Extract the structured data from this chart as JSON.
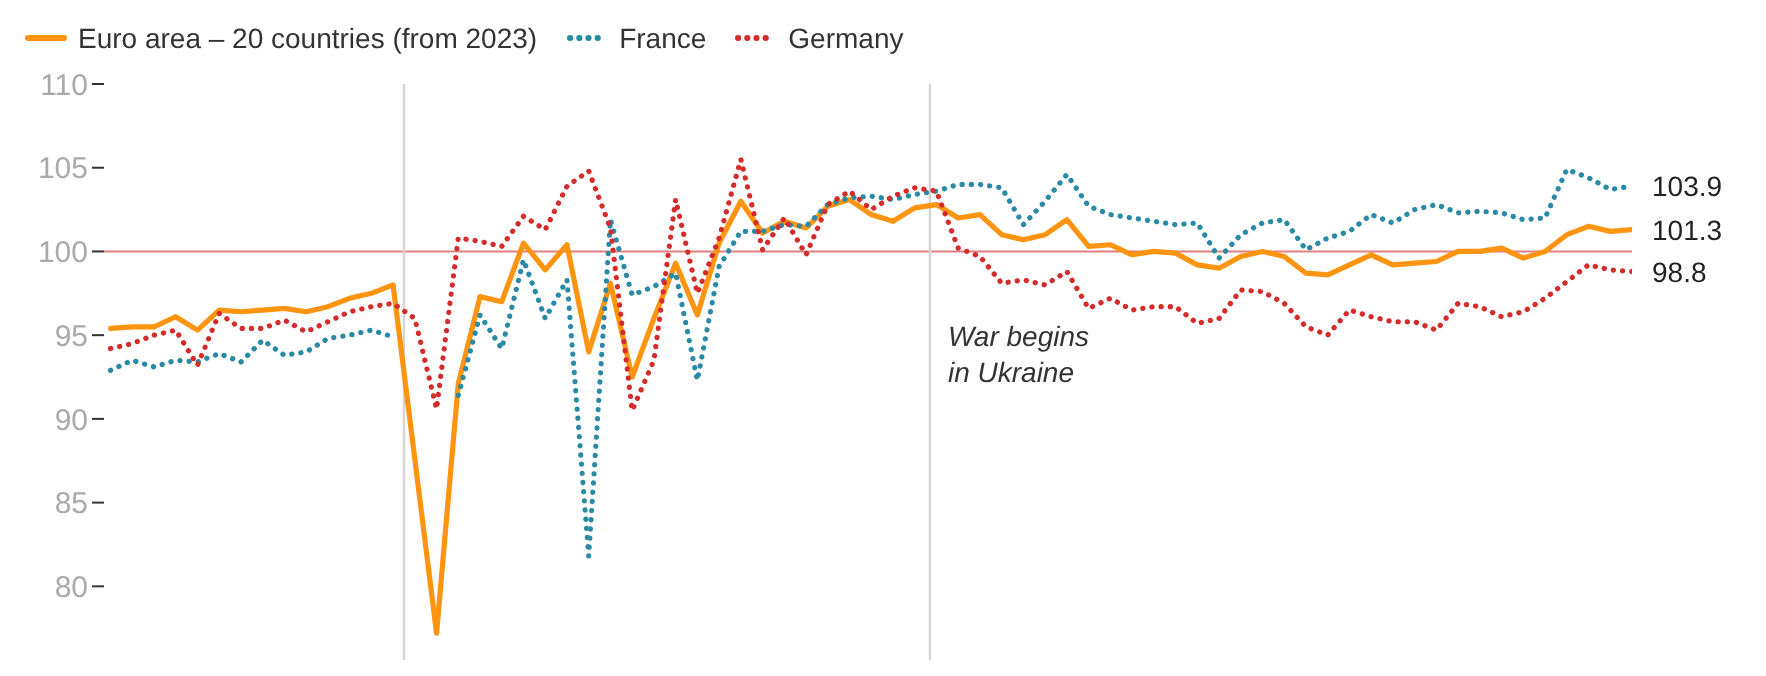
{
  "chart_data": {
    "type": "line",
    "legend": "top left",
    "tick_labels": "y",
    "marker": "none",
    "categories": [
      null,
      null,
      null,
      null,
      null,
      null,
      null,
      null,
      null,
      null,
      null,
      null,
      null,
      null,
      null,
      null,
      null,
      null,
      null,
      null,
      null,
      null,
      null,
      null,
      null,
      null,
      null,
      null,
      null,
      null,
      null,
      null,
      null,
      null,
      null,
      null,
      null,
      null,
      null,
      null,
      null,
      null,
      null,
      null,
      null,
      null,
      null,
      null,
      null,
      null,
      null,
      null,
      null,
      null,
      null,
      null,
      null,
      null,
      null,
      null,
      null,
      null,
      null,
      null,
      null,
      null,
      null,
      null,
      null,
      null,
      null
    ],
    "ylim": [
      75.6,
      110
    ],
    "yticks": [
      80,
      85,
      90,
      95,
      100,
      105,
      110
    ],
    "series": [
      {
        "name": "Euro area – 20 countries (from 2023)",
        "color": "#ff9410",
        "line_style": "solid",
        "values": [
          95.4,
          95.5,
          95.5,
          96.1,
          95.3,
          96.5,
          96.4,
          96.5,
          96.6,
          96.4,
          96.7,
          97.2,
          97.5,
          98.0,
          87.6,
          77.2,
          92.1,
          97.3,
          97.0,
          100.5,
          98.9,
          100.4,
          94.0,
          98.1,
          92.5,
          96.0,
          99.3,
          96.2,
          100.5,
          103.0,
          101.1,
          101.8,
          101.4,
          102.7,
          103.1,
          102.2,
          101.8,
          102.6,
          102.8,
          102.0,
          102.2,
          101.0,
          100.7,
          101.0,
          101.9,
          100.3,
          100.4,
          99.8,
          100.0,
          99.9,
          99.2,
          99.0,
          99.7,
          100.0,
          99.7,
          98.7,
          98.6,
          99.2,
          99.8,
          99.2,
          99.3,
          99.4,
          100.0,
          100.0,
          100.2,
          99.6,
          100.0,
          101.0,
          101.5,
          101.2,
          101.3
        ],
        "value_labels": [
          null,
          null,
          null,
          null,
          null,
          null,
          null,
          null,
          null,
          null,
          null,
          null,
          null,
          null,
          null,
          null,
          null,
          null,
          null,
          null,
          null,
          null,
          null,
          null,
          null,
          null,
          null,
          null,
          null,
          null,
          null,
          null,
          null,
          null,
          null,
          null,
          null,
          null,
          null,
          null,
          null,
          null,
          null,
          null,
          null,
          null,
          null,
          null,
          null,
          null,
          null,
          null,
          null,
          null,
          null,
          null,
          null,
          null,
          null,
          null,
          null,
          null,
          null,
          null,
          null,
          null,
          null,
          null,
          null,
          null,
          "101.3"
        ]
      },
      {
        "name": "France",
        "color": "#2a8aa6",
        "line_style": "dotted",
        "values": [
          92.9,
          93.5,
          93.1,
          93.5,
          93.4,
          93.9,
          93.4,
          94.7,
          93.8,
          94.0,
          94.8,
          95.0,
          95.3,
          94.9,
          null,
          null,
          91.4,
          96.2,
          94.2,
          99.5,
          96.0,
          98.3,
          81.8,
          101.9,
          97.4,
          97.9,
          98.7,
          92.3,
          99.1,
          101.2,
          101.2,
          101.6,
          101.5,
          102.8,
          103.2,
          103.3,
          103.1,
          103.4,
          103.6,
          104.0,
          104.0,
          103.8,
          101.6,
          103.0,
          104.6,
          102.7,
          102.2,
          102.0,
          101.8,
          101.6,
          101.7,
          99.6,
          101.0,
          101.7,
          101.9,
          100.1,
          100.8,
          101.2,
          102.2,
          101.7,
          102.5,
          102.8,
          102.3,
          102.4,
          102.3,
          101.9,
          102.0,
          104.9,
          104.4,
          103.7,
          103.9
        ],
        "value_labels": [
          null,
          null,
          null,
          null,
          null,
          null,
          null,
          null,
          null,
          null,
          null,
          null,
          null,
          null,
          null,
          null,
          null,
          null,
          null,
          null,
          null,
          null,
          null,
          null,
          null,
          null,
          null,
          null,
          null,
          null,
          null,
          null,
          null,
          null,
          null,
          null,
          null,
          null,
          null,
          null,
          null,
          null,
          null,
          null,
          null,
          null,
          null,
          null,
          null,
          null,
          null,
          null,
          null,
          null,
          null,
          null,
          null,
          null,
          null,
          null,
          null,
          null,
          null,
          null,
          null,
          null,
          null,
          null,
          null,
          null,
          "103.9"
        ]
      },
      {
        "name": "Germany",
        "color": "#d42b2b",
        "line_style": "dotted",
        "values": [
          94.2,
          94.5,
          95.0,
          95.3,
          93.2,
          96.3,
          95.4,
          95.4,
          95.9,
          95.2,
          95.8,
          96.4,
          96.7,
          96.9,
          96.0,
          90.6,
          100.8,
          100.6,
          100.3,
          102.1,
          101.3,
          103.9,
          104.8,
          101.4,
          90.5,
          93.5,
          103.1,
          97.5,
          100.8,
          105.5,
          100.1,
          102.0,
          99.8,
          102.8,
          103.6,
          102.5,
          103.3,
          103.8,
          103.6,
          100.2,
          99.7,
          98.1,
          98.3,
          98.0,
          98.8,
          96.6,
          97.2,
          96.5,
          96.7,
          96.7,
          95.7,
          96.0,
          97.7,
          97.6,
          96.9,
          95.5,
          95.0,
          96.5,
          96.1,
          95.8,
          95.8,
          95.3,
          96.9,
          96.7,
          96.1,
          96.4,
          97.2,
          98.2,
          99.2,
          98.9,
          98.8
        ],
        "value_labels": [
          null,
          null,
          null,
          null,
          null,
          null,
          null,
          null,
          null,
          null,
          null,
          null,
          null,
          null,
          null,
          null,
          null,
          null,
          null,
          null,
          null,
          null,
          null,
          null,
          null,
          null,
          null,
          null,
          null,
          null,
          null,
          null,
          null,
          null,
          null,
          null,
          null,
          null,
          null,
          null,
          null,
          null,
          null,
          null,
          null,
          null,
          null,
          null,
          null,
          null,
          null,
          null,
          null,
          null,
          null,
          null,
          null,
          null,
          null,
          null,
          null,
          null,
          null,
          null,
          null,
          null,
          null,
          null,
          null,
          null,
          "98.8"
        ]
      }
    ],
    "ref_lines": [
      {
        "axis": "y",
        "value": 100,
        "color": "#e08080"
      }
    ],
    "annotations": [
      "War begins\nin Ukraine"
    ]
  }
}
